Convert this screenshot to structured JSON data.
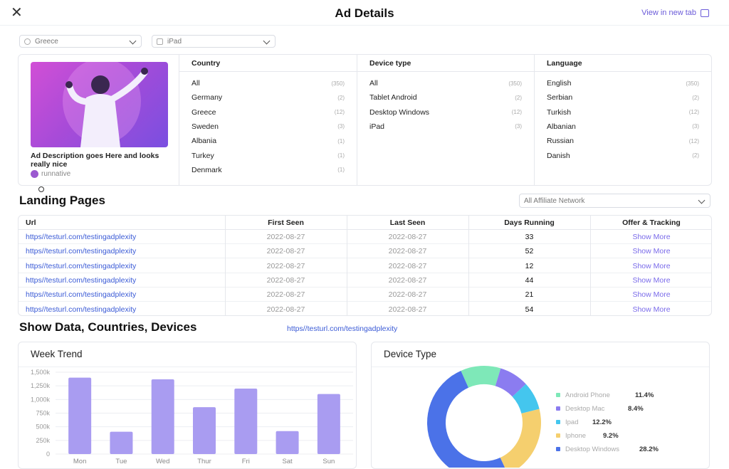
{
  "header": {
    "close_icon": "close-icon",
    "title": "Ad Details",
    "view_new_tab": "View in new tab",
    "external_icon": "external-link-icon"
  },
  "selects": {
    "country": "Greece",
    "device": "iPad"
  },
  "ad": {
    "description": "Ad Description goes Here and looks really nice",
    "brand": "runnative"
  },
  "country_col": {
    "title": "Country",
    "rows": [
      {
        "label": "All",
        "count": "(350)"
      },
      {
        "label": "Germany",
        "count": "(2)"
      },
      {
        "label": "Greece",
        "count": "(12)"
      },
      {
        "label": "Sweden",
        "count": "(3)"
      },
      {
        "label": "Albania",
        "count": "(1)"
      },
      {
        "label": "Turkey",
        "count": "(1)"
      },
      {
        "label": "Denmark",
        "count": "(1)"
      }
    ]
  },
  "device_col": {
    "title": "Device type",
    "rows": [
      {
        "label": "All",
        "count": "(350)"
      },
      {
        "label": "Tablet Android",
        "count": "(2)"
      },
      {
        "label": "Desktop Windows",
        "count": "(12)"
      },
      {
        "label": "iPad",
        "count": "(3)"
      }
    ]
  },
  "language_col": {
    "title": "Language",
    "rows": [
      {
        "label": "English",
        "count": "(350)"
      },
      {
        "label": "Serbian",
        "count": "(2)"
      },
      {
        "label": "Turkish",
        "count": "(12)"
      },
      {
        "label": "Albanian",
        "count": "(3)"
      },
      {
        "label": "Russian",
        "count": "(12)"
      },
      {
        "label": "Danish",
        "count": "(2)"
      }
    ]
  },
  "landing": {
    "title": "Landing Pages",
    "network_select": "All Affiliate  Network",
    "columns": [
      "Url",
      "First Seen",
      "Last Seen",
      "Days Running",
      "Offer & Tracking"
    ],
    "rows": [
      {
        "url": "https//testurl.com/testingadplexity",
        "first": "2022-08-27",
        "last": "2022-08-27",
        "days": "33",
        "offer": "Show More"
      },
      {
        "url": "https//testurl.com/testingadplexity",
        "first": "2022-08-27",
        "last": "2022-08-27",
        "days": "52",
        "offer": "Show More"
      },
      {
        "url": "https//testurl.com/testingadplexity",
        "first": "2022-08-27",
        "last": "2022-08-27",
        "days": "12",
        "offer": "Show More"
      },
      {
        "url": "https//testurl.com/testingadplexity",
        "first": "2022-08-27",
        "last": "2022-08-27",
        "days": "44",
        "offer": "Show More"
      },
      {
        "url": "https//testurl.com/testingadplexity",
        "first": "2022-08-27",
        "last": "2022-08-27",
        "days": "21",
        "offer": "Show More"
      },
      {
        "url": "https//testurl.com/testingadplexity",
        "first": "2022-08-27",
        "last": "2022-08-27",
        "days": "54",
        "offer": "Show More"
      }
    ]
  },
  "show_data": {
    "title": "Show Data, Countries, Devices",
    "link": "https//testurl.com/testingadplexity"
  },
  "colors": {
    "bar": "#a99cf1",
    "link": "#3b5bd6",
    "accent": "#6b5bd9"
  },
  "chart_data": [
    {
      "type": "bar",
      "title": "Week Trend",
      "categories": [
        "Mon",
        "Tue",
        "Wed",
        "Thur",
        "Fri",
        "Sat",
        "Sun"
      ],
      "values": [
        1400,
        410,
        1370,
        860,
        1200,
        420,
        1100
      ],
      "yticks": [
        "0",
        "250k",
        "500k",
        "750k",
        "1,000k",
        "1,250k",
        "1,500k"
      ],
      "ylim": [
        0,
        1500
      ]
    },
    {
      "type": "pie",
      "title": "Device Type",
      "slices": [
        {
          "label": "Android Phone",
          "pct_label": "11.4%",
          "value": 11.4,
          "color": "#7ee8b8"
        },
        {
          "label": "Desktop Mac",
          "pct_label": "8.4%",
          "value": 8.4,
          "color": "#8b7cf0"
        },
        {
          "label": "Ipad",
          "pct_label": "12.2%",
          "value": 12.2,
          "color": "#44c6ee"
        },
        {
          "label": "Iphone",
          "pct_label": "9.2%",
          "value": 9.2,
          "color": "#f5cf6e"
        },
        {
          "label": "Desktop Windows",
          "pct_label": "28.2%",
          "value": 28.2,
          "color": "#4b72e8"
        }
      ],
      "ring_values": [
        11.4,
        8.4,
        8,
        22,
        50.2
      ]
    }
  ]
}
